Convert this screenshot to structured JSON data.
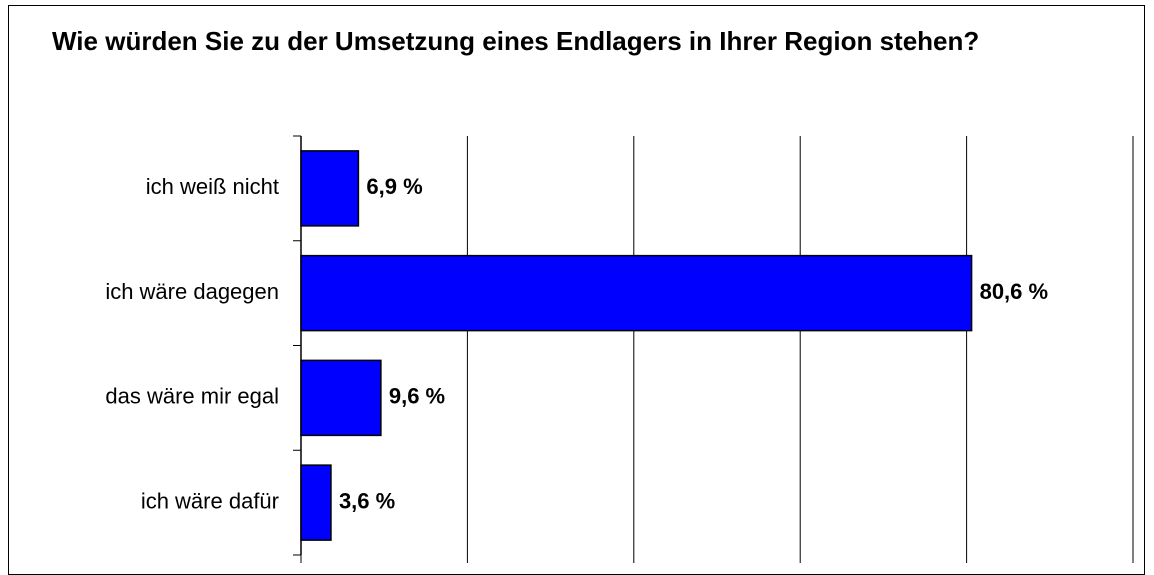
{
  "chart_data": {
    "type": "bar",
    "orientation": "horizontal",
    "title": "Wie würden Sie zu der Umsetzung eines Endlagers in Ihrer Region stehen?",
    "categories": [
      "ich weiß nicht",
      "ich wäre dagegen",
      "das wäre mir egal",
      "ich wäre dafür"
    ],
    "values": [
      6.9,
      80.6,
      9.6,
      3.6
    ],
    "value_labels": [
      "6,9 %",
      "80,6 %",
      "9,6 %",
      "3,6 %"
    ],
    "color": "#0000ff",
    "xlim": [
      0,
      100
    ],
    "xticks": [
      0,
      20,
      40,
      60,
      80,
      100
    ],
    "grid": true
  }
}
